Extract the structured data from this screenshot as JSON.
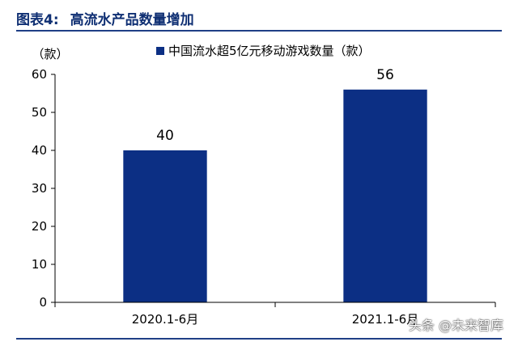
{
  "figure": {
    "label": "图表4:",
    "title": "高流水产品数量增加"
  },
  "watermark": "头条 @未来智库",
  "colors": {
    "bar": "#0c2f84",
    "axis": "#000000",
    "title": "#0f2f73",
    "rule": "#1f3f86"
  },
  "chart_data": {
    "type": "bar",
    "categories": [
      "2020.1-6月",
      "2021.1-6月"
    ],
    "series": [
      {
        "name": "中国流水超5亿元移动游戏数量（款）",
        "values": [
          40,
          56
        ]
      }
    ],
    "ylabel": "（款）",
    "ylim": [
      0,
      60
    ],
    "yticks": [
      0,
      10,
      20,
      30,
      40,
      50,
      60
    ],
    "legend": "top-center",
    "grid": false
  }
}
